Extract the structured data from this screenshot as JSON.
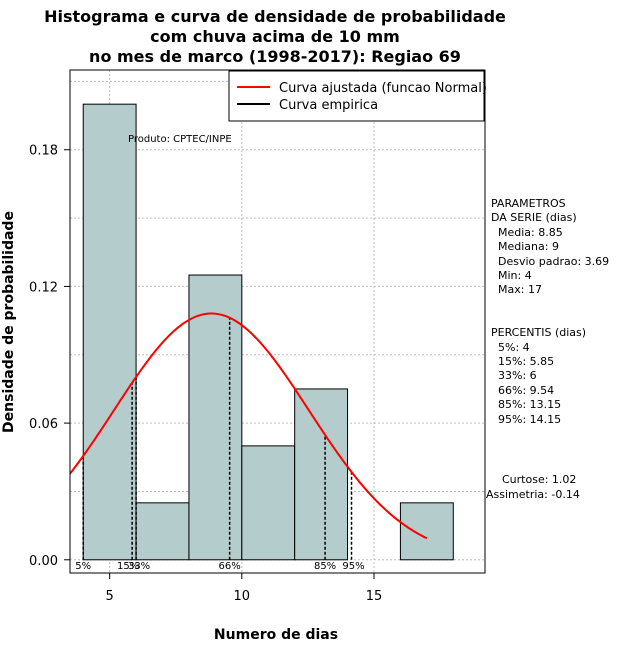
{
  "chart_data": {
    "type": "histogram",
    "title_lines": [
      "Histograma e curva de densidade de probabilidade",
      "com chuva acima de 10 mm",
      "no mes de marco (1998-2017): Regiao 69"
    ],
    "xlabel": "Numero de dias",
    "ylabel": "Densidade de probabilidade",
    "xlim": [
      3.5,
      19.2
    ],
    "ylim": [
      0,
      0.215
    ],
    "x_ticks": [
      5,
      10,
      15
    ],
    "y_ticks": [
      0.0,
      0.06,
      0.12,
      0.18
    ],
    "y_tick_labels": [
      "0.00",
      "0.06",
      "0.12",
      "0.18"
    ],
    "grid": true,
    "bin_color": "#b5cccc",
    "bins": [
      {
        "x0": 4,
        "x1": 6,
        "density": 0.2
      },
      {
        "x0": 6,
        "x1": 8,
        "density": 0.025
      },
      {
        "x0": 8,
        "x1": 10,
        "density": 0.125
      },
      {
        "x0": 10,
        "x1": 12,
        "density": 0.05
      },
      {
        "x0": 12,
        "x1": 14,
        "density": 0.075
      },
      {
        "x0": 14,
        "x1": 16,
        "density": 0.0
      },
      {
        "x0": 16,
        "x1": 18,
        "density": 0.025
      }
    ],
    "normal_curve": {
      "mean": 8.85,
      "sd": 3.69,
      "x_from": 3.5,
      "x_to": 17,
      "color": "#ff0000"
    },
    "percentile_lines": [
      {
        "label": "5%",
        "x": 4
      },
      {
        "label": "15%",
        "x": 5.85
      },
      {
        "label": "33%",
        "x": 6
      },
      {
        "label": "66%",
        "x": 9.54
      },
      {
        "label": "85%",
        "x": 13.15
      },
      {
        "label": "95%",
        "x": 14.15
      }
    ],
    "legend": {
      "position": "top-right",
      "entries": [
        {
          "label": "Curva ajustada (funcao Normal)",
          "color": "#ff0000"
        },
        {
          "label": "Curva empirica",
          "color": "#000000"
        }
      ]
    },
    "product_label": "Produto: CPTEC/INPE",
    "parametros": {
      "heading": [
        "PARAMETROS",
        "DA SERIE (dias)"
      ],
      "lines": [
        "Media: 8.85",
        "Mediana: 9",
        "Desvio padrao: 3.69",
        "Min: 4",
        "Max: 17"
      ]
    },
    "percentis": {
      "heading": "PERCENTIS (dias)",
      "lines": [
        "5%: 4",
        "15%: 5.85",
        "33%: 6",
        "66%: 9.54",
        "85%: 13.15",
        "95%: 14.15"
      ]
    },
    "stats": [
      "Curtose: 1.02",
      "Assimetria: -0.14"
    ]
  }
}
